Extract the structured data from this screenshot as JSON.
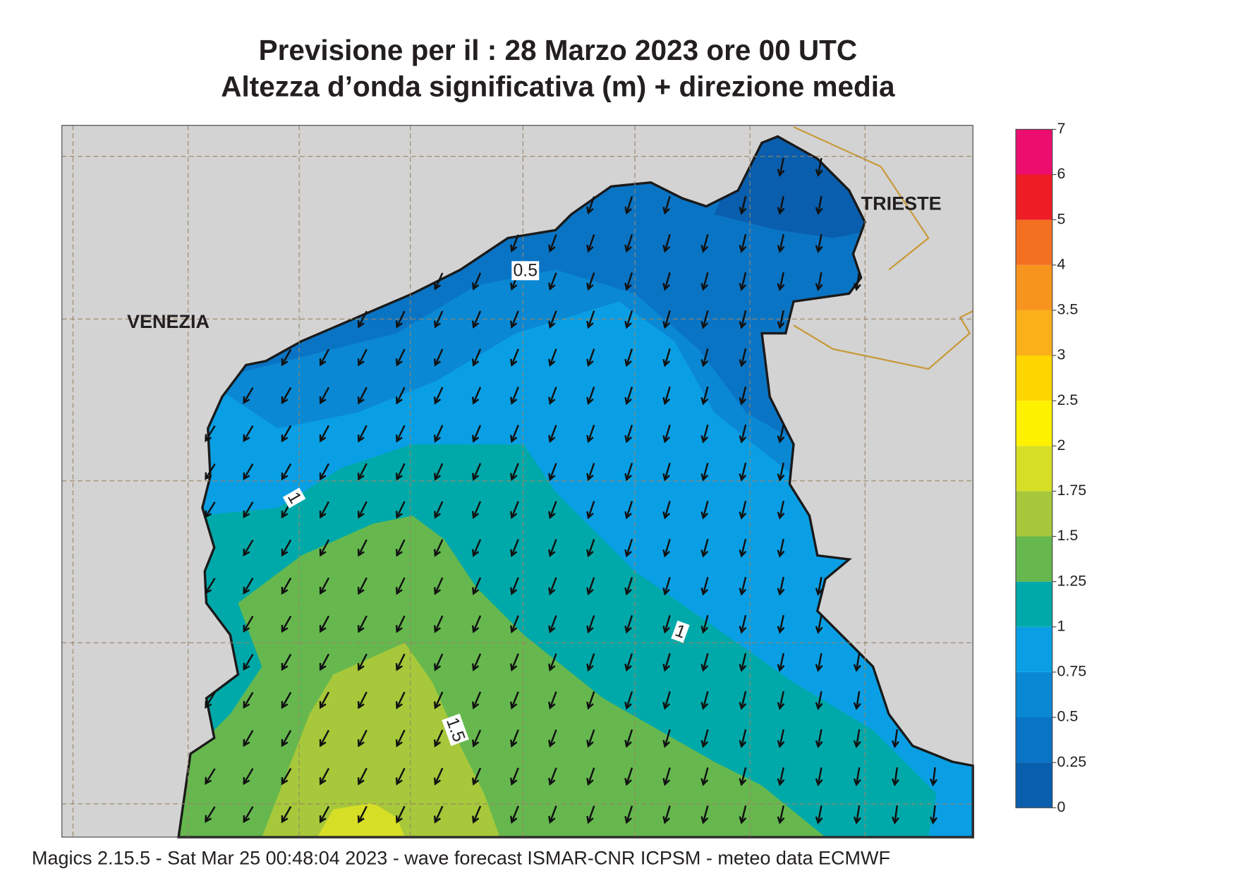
{
  "header": {
    "line1": "Previsione per il  :  28   Marzo   2023   ore 00 UTC",
    "line2": "Altezza d’onda significativa (m) + direzione media"
  },
  "map": {
    "place_labels": [
      "VENEZIA",
      "TRIESTE"
    ],
    "contour_labels": [
      0.5,
      1,
      1,
      1.5
    ]
  },
  "colorbar": {
    "levels": [
      0,
      0.25,
      0.5,
      0.75,
      1,
      1.25,
      1.5,
      1.75,
      2,
      2.5,
      3,
      3.5,
      4,
      5,
      6,
      7
    ],
    "colors": [
      "#0a5eae",
      "#0a74c4",
      "#0a88d4",
      "#0a9fe4",
      "#00a9a9",
      "#66b84e",
      "#a6c83a",
      "#d6de26",
      "#fff200",
      "#ffd500",
      "#fbb01a",
      "#f7941d",
      "#f37021",
      "#ee1c25",
      "#ec0e6e"
    ]
  },
  "footer": "Magics 2.15.5 - Sat Mar 25 00:48:04 2023 - wave forecast  ISMAR-CNR  ICPSM - meteo data   ECMWF"
}
